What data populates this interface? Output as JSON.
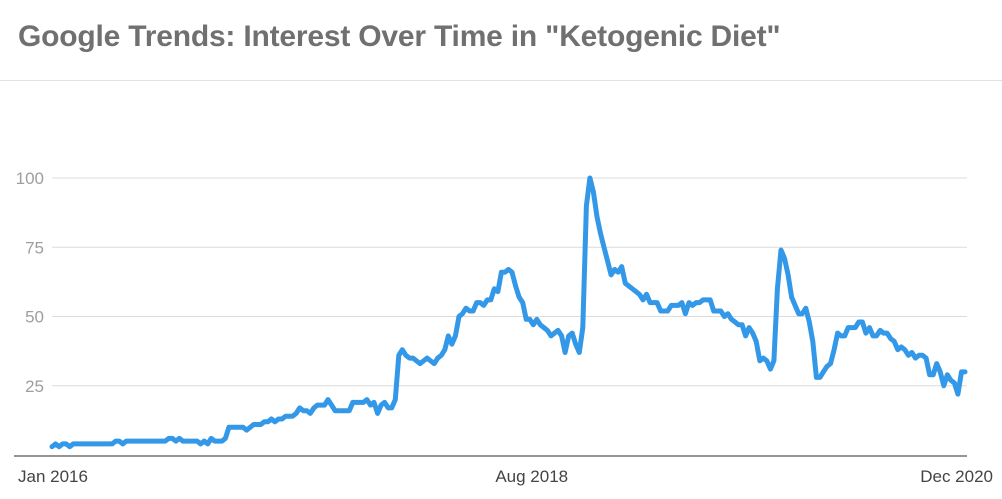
{
  "title": "Google Trends: Interest Over Time in \"Ketogenic Diet\"",
  "chart_data": {
    "type": "line",
    "title": "Google Trends: Interest Over Time in \"Ketogenic Diet\"",
    "xlabel": "",
    "ylabel": "",
    "ylim": [
      0,
      100
    ],
    "xlim": [
      "2016-01",
      "2020-12"
    ],
    "grid": true,
    "y_ticks": [
      "25",
      "50",
      "75",
      "100"
    ],
    "x_ticks": [
      "Jan 2016",
      "Aug 2018",
      "Dec 2020"
    ],
    "x_tick_positions": [
      "2016-01",
      "2018-08",
      "2020-12"
    ],
    "line_color": "#3498e8",
    "series": [
      {
        "values": [
          [
            0.0,
            3
          ],
          [
            0.4,
            4
          ],
          [
            0.8,
            3
          ],
          [
            1.2,
            4
          ],
          [
            1.6,
            4
          ],
          [
            2.0,
            3
          ],
          [
            2.4,
            4
          ],
          [
            2.8,
            4
          ],
          [
            3.2,
            4
          ],
          [
            3.6,
            4
          ],
          [
            4.0,
            4
          ],
          [
            4.4,
            4
          ],
          [
            4.8,
            4
          ],
          [
            5.2,
            4
          ],
          [
            5.6,
            4
          ],
          [
            6.0,
            4
          ],
          [
            6.4,
            4
          ],
          [
            6.8,
            4
          ],
          [
            7.2,
            5
          ],
          [
            7.6,
            5
          ],
          [
            8.0,
            4
          ],
          [
            8.4,
            5
          ],
          [
            8.8,
            5
          ],
          [
            9.2,
            5
          ],
          [
            9.6,
            5
          ],
          [
            10.0,
            5
          ],
          [
            10.4,
            5
          ],
          [
            10.8,
            5
          ],
          [
            11.2,
            5
          ],
          [
            11.6,
            5
          ],
          [
            12.0,
            5
          ],
          [
            12.4,
            5
          ],
          [
            12.8,
            5
          ],
          [
            13.2,
            6
          ],
          [
            13.6,
            6
          ],
          [
            14.0,
            5
          ],
          [
            14.4,
            6
          ],
          [
            14.8,
            5
          ],
          [
            15.2,
            5
          ],
          [
            15.6,
            5
          ],
          [
            16.0,
            5
          ],
          [
            16.4,
            5
          ],
          [
            16.8,
            4
          ],
          [
            17.2,
            5
          ],
          [
            17.6,
            4
          ],
          [
            18.0,
            6
          ],
          [
            18.4,
            5
          ],
          [
            18.8,
            5
          ],
          [
            19.2,
            5
          ],
          [
            19.6,
            6
          ],
          [
            20.0,
            10
          ],
          [
            20.4,
            10
          ],
          [
            20.8,
            10
          ],
          [
            21.2,
            10
          ],
          [
            21.6,
            10
          ],
          [
            22.0,
            9
          ],
          [
            22.4,
            10
          ],
          [
            22.8,
            11
          ],
          [
            23.2,
            11
          ],
          [
            23.6,
            11
          ],
          [
            24.0,
            12
          ],
          [
            24.4,
            12
          ],
          [
            24.8,
            13
          ],
          [
            25.2,
            12
          ],
          [
            25.6,
            13
          ],
          [
            26.0,
            13
          ],
          [
            26.4,
            14
          ],
          [
            26.8,
            14
          ],
          [
            27.2,
            14
          ],
          [
            27.6,
            15
          ],
          [
            28.0,
            17
          ],
          [
            28.4,
            16
          ],
          [
            28.8,
            16
          ],
          [
            29.2,
            15
          ],
          [
            29.6,
            17
          ],
          [
            30.0,
            18
          ],
          [
            30.4,
            18
          ],
          [
            30.8,
            18
          ],
          [
            31.2,
            20
          ],
          [
            31.6,
            18
          ],
          [
            32.0,
            16
          ],
          [
            32.4,
            16
          ],
          [
            32.8,
            16
          ],
          [
            33.2,
            16
          ],
          [
            33.6,
            16
          ],
          [
            34.0,
            19
          ],
          [
            34.4,
            19
          ],
          [
            34.8,
            19
          ],
          [
            35.2,
            19
          ],
          [
            35.6,
            20
          ],
          [
            36.0,
            18
          ],
          [
            36.4,
            19
          ],
          [
            36.8,
            15
          ],
          [
            37.2,
            18
          ],
          [
            37.6,
            19
          ],
          [
            38.0,
            17
          ],
          [
            38.4,
            17
          ],
          [
            38.8,
            20
          ],
          [
            39.2,
            36
          ],
          [
            39.6,
            38
          ],
          [
            40.0,
            36
          ],
          [
            40.4,
            35
          ],
          [
            40.8,
            35
          ],
          [
            41.2,
            34
          ],
          [
            41.6,
            33
          ],
          [
            42.0,
            34
          ],
          [
            42.4,
            35
          ],
          [
            42.8,
            34
          ],
          [
            43.2,
            33
          ],
          [
            43.6,
            35
          ],
          [
            44.0,
            36
          ],
          [
            44.4,
            38
          ],
          [
            44.8,
            43
          ],
          [
            45.2,
            40
          ],
          [
            45.6,
            43
          ],
          [
            46.0,
            50
          ],
          [
            46.4,
            51
          ],
          [
            46.8,
            53
          ],
          [
            47.2,
            52
          ],
          [
            47.6,
            52
          ],
          [
            48.0,
            55
          ],
          [
            48.4,
            55
          ],
          [
            48.8,
            54
          ],
          [
            49.2,
            56
          ],
          [
            49.6,
            56
          ],
          [
            50.0,
            60
          ],
          [
            50.4,
            59
          ],
          [
            50.8,
            66
          ],
          [
            51.2,
            66
          ],
          [
            51.6,
            67
          ],
          [
            52.0,
            66
          ],
          [
            52.4,
            61
          ],
          [
            52.8,
            57
          ],
          [
            53.2,
            55
          ],
          [
            53.6,
            49
          ],
          [
            54.0,
            49
          ],
          [
            54.4,
            47
          ],
          [
            54.8,
            49
          ],
          [
            55.2,
            47
          ],
          [
            55.6,
            46
          ],
          [
            56.0,
            45
          ],
          [
            56.4,
            43
          ],
          [
            56.8,
            44
          ],
          [
            57.2,
            45
          ],
          [
            57.6,
            43
          ],
          [
            58.0,
            37
          ],
          [
            58.4,
            43
          ],
          [
            58.8,
            44
          ],
          [
            59.2,
            40
          ],
          [
            59.6,
            37
          ],
          [
            60.0,
            46
          ],
          [
            60.4,
            90
          ],
          [
            60.8,
            100
          ],
          [
            61.2,
            95
          ],
          [
            61.6,
            86
          ],
          [
            62.0,
            80
          ],
          [
            62.4,
            75
          ],
          [
            62.8,
            70
          ],
          [
            63.2,
            65
          ],
          [
            63.6,
            67
          ],
          [
            64.0,
            66
          ],
          [
            64.4,
            68
          ],
          [
            64.8,
            62
          ],
          [
            65.2,
            61
          ],
          [
            65.6,
            60
          ],
          [
            66.0,
            59
          ],
          [
            66.4,
            58
          ],
          [
            66.8,
            56
          ],
          [
            67.2,
            58
          ],
          [
            67.6,
            55
          ],
          [
            68.0,
            55
          ],
          [
            68.4,
            55
          ],
          [
            68.8,
            52
          ],
          [
            69.2,
            52
          ],
          [
            69.6,
            52
          ],
          [
            70.0,
            54
          ],
          [
            70.4,
            54
          ],
          [
            70.8,
            54
          ],
          [
            71.2,
            55
          ],
          [
            71.6,
            51
          ],
          [
            72.0,
            55
          ],
          [
            72.4,
            54
          ],
          [
            72.8,
            55
          ],
          [
            73.2,
            55
          ],
          [
            73.6,
            56
          ],
          [
            74.0,
            56
          ],
          [
            74.4,
            56
          ],
          [
            74.8,
            52
          ],
          [
            75.2,
            52
          ],
          [
            75.6,
            52
          ],
          [
            76.0,
            50
          ],
          [
            76.4,
            51
          ],
          [
            76.8,
            49
          ],
          [
            77.2,
            48
          ],
          [
            77.6,
            47
          ],
          [
            78.0,
            47
          ],
          [
            78.4,
            43
          ],
          [
            78.8,
            46
          ],
          [
            79.2,
            44
          ],
          [
            79.6,
            41
          ],
          [
            80.0,
            34
          ],
          [
            80.4,
            35
          ],
          [
            80.8,
            34
          ],
          [
            81.2,
            31
          ],
          [
            81.6,
            34
          ],
          [
            82.0,
            60
          ],
          [
            82.4,
            74
          ],
          [
            82.8,
            71
          ],
          [
            83.2,
            65
          ],
          [
            83.6,
            57
          ],
          [
            84.0,
            54
          ],
          [
            84.4,
            51
          ],
          [
            84.8,
            51
          ],
          [
            85.2,
            53
          ],
          [
            85.6,
            48
          ],
          [
            86.0,
            41
          ],
          [
            86.4,
            28
          ],
          [
            86.8,
            28
          ],
          [
            87.2,
            30
          ],
          [
            87.6,
            32
          ],
          [
            88.0,
            33
          ],
          [
            88.4,
            38
          ],
          [
            88.8,
            44
          ],
          [
            89.2,
            43
          ],
          [
            89.6,
            43
          ],
          [
            90.0,
            46
          ],
          [
            90.4,
            46
          ],
          [
            90.8,
            46
          ],
          [
            91.2,
            48
          ],
          [
            91.6,
            48
          ],
          [
            92.0,
            44
          ],
          [
            92.4,
            46
          ],
          [
            92.8,
            43
          ],
          [
            93.2,
            43
          ],
          [
            93.6,
            45
          ],
          [
            94.0,
            44
          ],
          [
            94.4,
            44
          ],
          [
            94.8,
            42
          ],
          [
            95.2,
            41
          ],
          [
            95.6,
            38
          ],
          [
            96.0,
            39
          ],
          [
            96.4,
            38
          ],
          [
            96.8,
            36
          ],
          [
            97.2,
            37
          ],
          [
            97.6,
            35
          ],
          [
            98.0,
            36
          ],
          [
            98.4,
            36
          ],
          [
            98.8,
            35
          ],
          [
            99.2,
            29
          ],
          [
            99.6,
            29
          ],
          [
            100.0,
            33
          ],
          [
            100.4,
            30
          ],
          [
            100.8,
            25
          ],
          [
            101.2,
            29
          ],
          [
            101.6,
            27
          ],
          [
            102.0,
            26
          ],
          [
            102.4,
            22
          ],
          [
            102.8,
            30
          ],
          [
            103.2,
            30
          ]
        ]
      }
    ]
  }
}
